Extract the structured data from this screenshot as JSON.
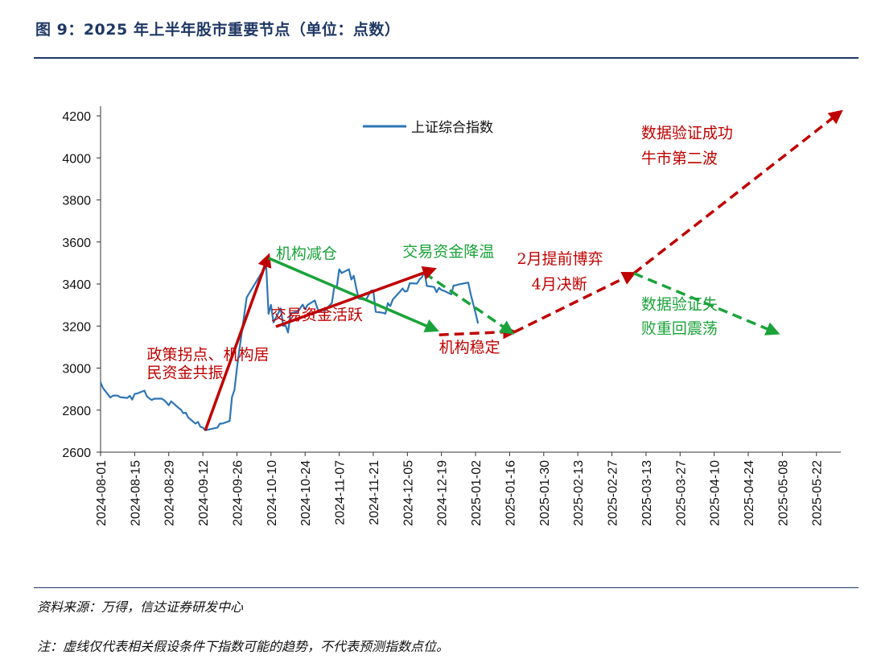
{
  "page": {
    "title": "图 9：2025 年上半年股市重要节点（单位：点数）",
    "source": "资料来源：万得，信达证券研发中心",
    "note": "注：虚线仅代表相关假设条件下指数可能的趋势，不代表预测指数点位。"
  },
  "colors": {
    "series": "#2e75b6",
    "red": "#c00000",
    "green": "#1aa33a",
    "title": "#1f3864"
  },
  "chart_data": {
    "type": "line",
    "title": "",
    "xlabel": "",
    "ylabel": "",
    "ylim": [
      2600,
      4200
    ],
    "xlim": [
      "2024-08-01",
      "2025-06-01"
    ],
    "yticks": [
      2600,
      2800,
      3000,
      3200,
      3400,
      3600,
      3800,
      4000,
      4200
    ],
    "xticks": [
      "2024-08-01",
      "2024-08-15",
      "2024-08-29",
      "2024-09-12",
      "2024-09-26",
      "2024-10-10",
      "2024-10-24",
      "2024-11-07",
      "2024-11-21",
      "2024-12-05",
      "2024-12-19",
      "2025-01-02",
      "2025-01-16",
      "2025-01-30",
      "2025-02-13",
      "2025-02-27",
      "2025-03-13",
      "2025-03-27",
      "2025-04-10",
      "2025-04-24",
      "2025-05-08",
      "2025-05-22"
    ],
    "legend": {
      "position": "top-center",
      "label": "上证综合指数"
    },
    "series": [
      {
        "name": "上证综合指数",
        "points": [
          [
            "2024-08-01",
            2932
          ],
          [
            "2024-08-02",
            2905
          ],
          [
            "2024-08-05",
            2860
          ],
          [
            "2024-08-06",
            2868
          ],
          [
            "2024-08-07",
            2870
          ],
          [
            "2024-08-08",
            2869
          ],
          [
            "2024-08-09",
            2862
          ],
          [
            "2024-08-12",
            2858
          ],
          [
            "2024-08-13",
            2868
          ],
          [
            "2024-08-14",
            2850
          ],
          [
            "2024-08-15",
            2877
          ],
          [
            "2024-08-16",
            2879
          ],
          [
            "2024-08-19",
            2893
          ],
          [
            "2024-08-20",
            2866
          ],
          [
            "2024-08-21",
            2856
          ],
          [
            "2024-08-22",
            2848
          ],
          [
            "2024-08-23",
            2854
          ],
          [
            "2024-08-26",
            2855
          ],
          [
            "2024-08-27",
            2848
          ],
          [
            "2024-08-28",
            2837
          ],
          [
            "2024-08-29",
            2823
          ],
          [
            "2024-08-30",
            2842
          ],
          [
            "2024-09-02",
            2811
          ],
          [
            "2024-09-03",
            2802
          ],
          [
            "2024-09-04",
            2785
          ],
          [
            "2024-09-05",
            2788
          ],
          [
            "2024-09-06",
            2765
          ],
          [
            "2024-09-09",
            2736
          ],
          [
            "2024-09-10",
            2744
          ],
          [
            "2024-09-11",
            2721
          ],
          [
            "2024-09-12",
            2717
          ],
          [
            "2024-09-13",
            2704
          ],
          [
            "2024-09-18",
            2717
          ],
          [
            "2024-09-19",
            2736
          ],
          [
            "2024-09-20",
            2736
          ],
          [
            "2024-09-23",
            2748
          ],
          [
            "2024-09-24",
            2863
          ],
          [
            "2024-09-25",
            2896
          ],
          [
            "2024-09-26",
            3000
          ],
          [
            "2024-09-27",
            3087
          ],
          [
            "2024-09-30",
            3336
          ],
          [
            "2024-10-08",
            3489
          ],
          [
            "2024-10-09",
            3258
          ],
          [
            "2024-10-10",
            3301
          ],
          [
            "2024-10-11",
            3217
          ],
          [
            "2024-10-14",
            3284
          ],
          [
            "2024-10-15",
            3201
          ],
          [
            "2024-10-16",
            3202
          ],
          [
            "2024-10-17",
            3169
          ],
          [
            "2024-10-18",
            3261
          ],
          [
            "2024-10-21",
            3268
          ],
          [
            "2024-10-22",
            3285
          ],
          [
            "2024-10-23",
            3302
          ],
          [
            "2024-10-24",
            3280
          ],
          [
            "2024-10-25",
            3300
          ],
          [
            "2024-10-28",
            3322
          ],
          [
            "2024-10-29",
            3286
          ],
          [
            "2024-10-30",
            3266
          ],
          [
            "2024-10-31",
            3279
          ],
          [
            "2024-11-01",
            3272
          ],
          [
            "2024-11-04",
            3310
          ],
          [
            "2024-11-05",
            3387
          ],
          [
            "2024-11-06",
            3384
          ],
          [
            "2024-11-07",
            3470
          ],
          [
            "2024-11-08",
            3452
          ],
          [
            "2024-11-11",
            3470
          ],
          [
            "2024-11-12",
            3421
          ],
          [
            "2024-11-13",
            3439
          ],
          [
            "2024-11-14",
            3380
          ],
          [
            "2024-11-15",
            3331
          ],
          [
            "2024-11-18",
            3324
          ],
          [
            "2024-11-19",
            3346
          ],
          [
            "2024-11-20",
            3368
          ],
          [
            "2024-11-21",
            3370
          ],
          [
            "2024-11-22",
            3268
          ],
          [
            "2024-11-25",
            3263
          ],
          [
            "2024-11-26",
            3259
          ],
          [
            "2024-11-27",
            3309
          ],
          [
            "2024-11-28",
            3295
          ],
          [
            "2024-11-29",
            3326
          ],
          [
            "2024-12-02",
            3364
          ],
          [
            "2024-12-03",
            3379
          ],
          [
            "2024-12-04",
            3364
          ],
          [
            "2024-12-05",
            3368
          ],
          [
            "2024-12-06",
            3404
          ],
          [
            "2024-12-09",
            3402
          ],
          [
            "2024-12-10",
            3422
          ],
          [
            "2024-12-11",
            3432
          ],
          [
            "2024-12-12",
            3461
          ],
          [
            "2024-12-13",
            3391
          ],
          [
            "2024-12-16",
            3386
          ],
          [
            "2024-12-17",
            3361
          ],
          [
            "2024-12-18",
            3382
          ],
          [
            "2024-12-19",
            3371
          ],
          [
            "2024-12-20",
            3368
          ],
          [
            "2024-12-23",
            3351
          ],
          [
            "2024-12-24",
            3393
          ],
          [
            "2024-12-25",
            3394
          ],
          [
            "2024-12-26",
            3398
          ],
          [
            "2024-12-27",
            3400
          ],
          [
            "2024-12-30",
            3407
          ],
          [
            "2024-12-31",
            3352
          ],
          [
            "2025-01-02",
            3262
          ],
          [
            "2025-01-03",
            3212
          ]
        ]
      }
    ],
    "dashed_paths": [
      {
        "color": "red",
        "points": [
          [
            "2024-12-18",
            3158
          ],
          [
            "2025-01-14",
            3172
          ],
          [
            "2025-01-18",
            3172
          ]
        ]
      },
      {
        "color": "red",
        "points": [
          [
            "2025-01-18",
            3172
          ],
          [
            "2025-03-08",
            3451
          ]
        ]
      },
      {
        "color": "red",
        "points": [
          [
            "2025-03-08",
            3451
          ],
          [
            "2025-06-01",
            4220
          ]
        ]
      },
      {
        "color": "green",
        "points": [
          [
            "2024-12-12",
            3452
          ],
          [
            "2025-01-17",
            3168
          ]
        ]
      },
      {
        "color": "green",
        "points": [
          [
            "2025-03-08",
            3451
          ],
          [
            "2025-05-06",
            3166
          ]
        ]
      }
    ],
    "trend_arrows": [
      {
        "color": "red",
        "from": [
          "2024-09-13",
          2703
        ],
        "to": [
          "2024-10-09",
          3535
        ]
      },
      {
        "color": "green",
        "from": [
          "2024-10-09",
          3523
        ],
        "to": [
          "2024-12-17",
          3180
        ]
      },
      {
        "color": "red",
        "from": [
          "2024-10-12",
          3197
        ],
        "to": [
          "2024-12-16",
          3471
        ]
      }
    ],
    "annotations": [
      {
        "text": "政策拐点、机构居",
        "color": "red",
        "at": [
          "2024-08-20",
          3040
        ]
      },
      {
        "text": "民资金共振",
        "color": "red",
        "at": [
          "2024-08-20",
          2955
        ]
      },
      {
        "text": "机构减仓",
        "color": "green",
        "at": [
          "2024-10-12",
          3520
        ]
      },
      {
        "text": "交易资金活跃",
        "color": "red",
        "at": [
          "2024-10-10",
          3230
        ]
      },
      {
        "text": "交易资金降温",
        "color": "green",
        "at": [
          "2024-12-03",
          3530
        ]
      },
      {
        "text": "机构稳定",
        "color": "red",
        "at": [
          "2024-12-18",
          3075
        ]
      },
      {
        "text": "2月提前博弈",
        "color": "red",
        "at": [
          "2025-01-19",
          3495
        ]
      },
      {
        "text": "4月决断",
        "color": "red",
        "at": [
          "2025-01-25",
          3375
        ]
      },
      {
        "text": "数据验证成功",
        "color": "red",
        "at": [
          "2025-03-11",
          4095
        ]
      },
      {
        "text": "牛市第二波",
        "color": "red",
        "at": [
          "2025-03-11",
          3975
        ]
      },
      {
        "text": "数据验证失",
        "color": "green",
        "at": [
          "2025-03-11",
          3280
        ]
      },
      {
        "text": "败重回震荡",
        "color": "green",
        "at": [
          "2025-03-11",
          3165
        ]
      }
    ]
  }
}
